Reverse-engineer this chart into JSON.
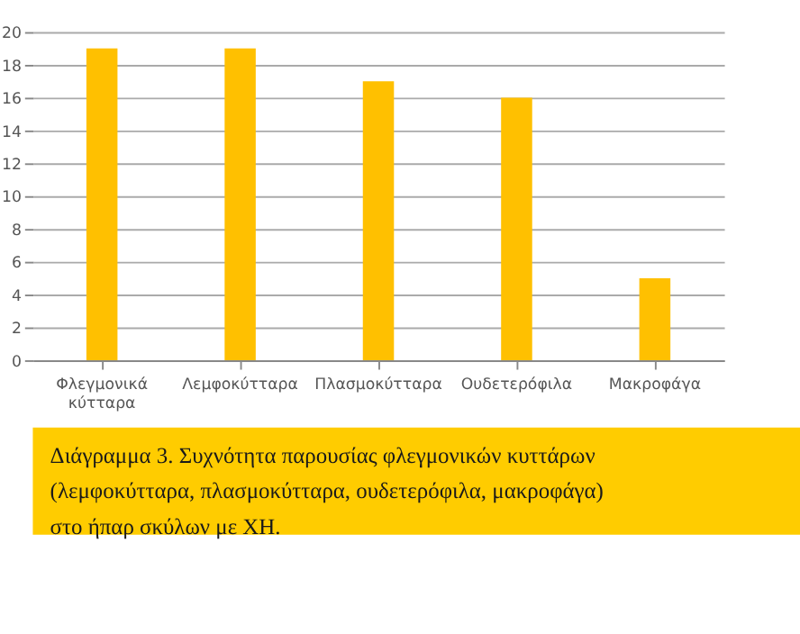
{
  "chart_data": {
    "type": "bar",
    "categories": [
      "Φλεγμονικά κύτταρα",
      "Λεμφοκύτταρα",
      "Πλασμοκύτταρα",
      "Ουδετερόφιλα",
      "Μακροφάγα"
    ],
    "values": [
      19,
      19,
      17,
      16,
      5
    ],
    "color": "#ffc000",
    "ylim": [
      0,
      20
    ],
    "yticks": [
      0,
      2,
      4,
      6,
      8,
      10,
      12,
      14,
      16,
      18,
      20
    ],
    "grid": "y",
    "annotations": [
      "Διάγραμμα 3. Συχνότητα παρουσίας φλεγμονικών κυττάρων (λεμφοκύτταρα, πλασμοκύτταρα, ουδετερόφιλα, μακροφάγα) στο ήπαρ σκύλων με ΧΗ."
    ]
  }
}
